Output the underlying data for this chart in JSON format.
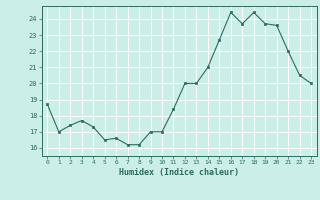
{
  "x": [
    0,
    1,
    2,
    3,
    4,
    5,
    6,
    7,
    8,
    9,
    10,
    11,
    12,
    13,
    14,
    15,
    16,
    17,
    18,
    19,
    20,
    21,
    22,
    23
  ],
  "y": [
    18.7,
    17.0,
    17.4,
    17.7,
    17.3,
    16.5,
    16.6,
    16.2,
    16.2,
    17.0,
    17.0,
    18.4,
    20.0,
    20.0,
    21.0,
    22.7,
    24.4,
    23.7,
    24.4,
    23.7,
    23.6,
    22.0,
    20.5,
    20.0
  ],
  "xlabel": "Humidex (Indice chaleur)",
  "ylim": [
    15.5,
    24.8
  ],
  "xlim": [
    -0.5,
    23.5
  ],
  "yticks": [
    16,
    17,
    18,
    19,
    20,
    21,
    22,
    23,
    24
  ],
  "xticks": [
    0,
    1,
    2,
    3,
    4,
    5,
    6,
    7,
    8,
    9,
    10,
    11,
    12,
    13,
    14,
    15,
    16,
    17,
    18,
    19,
    20,
    21,
    22,
    23
  ],
  "line_color": "#2e6b5e",
  "marker_color": "#2e6b5e",
  "bg_color": "#cceee8",
  "grid_color": "#ffffff",
  "grid_minor_color": "#ddf5f0",
  "plot_area_bg": "#cceee8"
}
